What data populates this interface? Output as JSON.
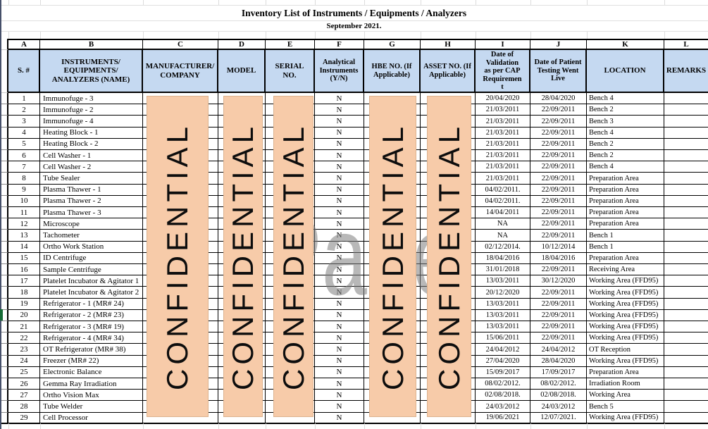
{
  "title": "Inventory List of Instruments / Equipments / Analyzers",
  "subtitle": "September 2021.",
  "columns": [
    "A",
    "B",
    "C",
    "D",
    "E",
    "F",
    "G",
    "H",
    "I",
    "J",
    "K",
    "L"
  ],
  "headers": {
    "serial": "S. #",
    "name": "INSTRUMENTS/ EQUIPMENTS/ ANALYZERS (NAME)",
    "manufacturer": "MANUFACTURER/ COMPANY",
    "model": "MODEL",
    "serial_no": "SERIAL NO.",
    "analytical": "Analytical Instruments (Y/N)",
    "hbe": "HBE NO. (If Applicable)",
    "asset": "ASSET NO. (If Applicable)",
    "validation": "Date of Validation as per CAP Requirement",
    "live": "Date of Patient Testing Went Live",
    "location": "LOCATION",
    "remarks": "REMARKS"
  },
  "watermarks": {
    "confidential": "CONFIDENTIAL",
    "page": "Page"
  },
  "rows": [
    {
      "s": "1",
      "name": "Immunofuge - 3",
      "yn": "N",
      "validation": "20/04/2020",
      "live": "28/04/2020",
      "location": "Bench 4"
    },
    {
      "s": "2",
      "name": "Immunofuge - 2",
      "yn": "N",
      "validation": "21/03/2011",
      "live": "22/09/2011",
      "location": "Bench 2"
    },
    {
      "s": "3",
      "name": "Immunofuge - 4",
      "yn": "N",
      "validation": "21/03/2011",
      "live": "22/09/2011",
      "location": "Bench 3"
    },
    {
      "s": "4",
      "name": "Heating Block - 1",
      "yn": "N",
      "validation": "21/03/2011",
      "live": "22/09/2011",
      "location": "Bench 4"
    },
    {
      "s": "5",
      "name": "Heating Block - 2",
      "yn": "N",
      "validation": "21/03/2011",
      "live": "22/09/2011",
      "location": "Bench 2"
    },
    {
      "s": "6",
      "name": "Cell Washer - 1",
      "yn": "N",
      "validation": "21/03/2011",
      "live": "22/09/2011",
      "location": "Bench 2"
    },
    {
      "s": "7",
      "name": "Cell Washer - 2",
      "yn": "N",
      "validation": "21/03/2011",
      "live": "22/09/2011",
      "location": "Bench 4"
    },
    {
      "s": "8",
      "name": "Tube Sealer",
      "yn": "N",
      "validation": "21/03/2011",
      "live": "22/09/2011",
      "location": "Preparation Area"
    },
    {
      "s": "9",
      "name": "Plasma Thawer - 1",
      "yn": "N",
      "validation": "04/02/2011.",
      "live": "22/09/2011",
      "location": "Preparation Area"
    },
    {
      "s": "10",
      "name": "Plasma Thawer - 2",
      "yn": "N",
      "validation": "04/02/2011.",
      "live": "22/09/2011",
      "location": "Preparation Area"
    },
    {
      "s": "11",
      "name": "Plasma Thawer - 3",
      "yn": "N",
      "validation": "14/04/2011",
      "live": "22/09/2011",
      "location": "Preparation Area"
    },
    {
      "s": "12",
      "name": "Microscope",
      "yn": "N",
      "validation": "NA",
      "live": "22/09/2011",
      "location": "Preparation Area"
    },
    {
      "s": "13",
      "name": "Tachometer",
      "yn": "N",
      "validation": "NA",
      "live": "22/09/2011",
      "location": "Bench 1"
    },
    {
      "s": "14",
      "name": "Ortho Work Station",
      "yn": "N",
      "validation": "02/12/2014.",
      "live": "10/12/2014",
      "location": "Bench 1"
    },
    {
      "s": "15",
      "name": "ID Centrifuge",
      "yn": "N",
      "validation": "18/04/2016",
      "live": "18/04/2016",
      "location": "Preparation Area"
    },
    {
      "s": "16",
      "name": "Sample Centrifuge",
      "yn": "N",
      "validation": "31/01/2018",
      "live": "22/09/2011",
      "location": "Receiving Area"
    },
    {
      "s": "17",
      "name": "Platelet Incubator & Agitator 1",
      "yn": "N",
      "validation": "13/03/2011",
      "live": "30/12/2020",
      "location": "Working Area (FFD95)"
    },
    {
      "s": "18",
      "name": "Platelet Incubator & Agitator 2",
      "yn": "N",
      "validation": "20/12/2020",
      "live": "22/09/2011",
      "location": "Working Area (FFD95)"
    },
    {
      "s": "19",
      "name": "Refrigerator - 1 (MR# 24)",
      "yn": "N",
      "validation": "13/03/2011",
      "live": "22/09/2011",
      "location": "Working Area (FFD95)"
    },
    {
      "s": "20",
      "name": "Refrigerator - 2 (MR# 23)",
      "yn": "N",
      "validation": "13/03/2011",
      "live": "22/09/2011",
      "location": "Working Area (FFD95)"
    },
    {
      "s": "21",
      "name": "Refrigerator - 3 (MR# 19)",
      "yn": "N",
      "validation": "13/03/2011",
      "live": "22/09/2011",
      "location": "Working Area (FFD95)"
    },
    {
      "s": "22",
      "name": "Refrigerator - 4 (MR# 34)",
      "yn": "N",
      "validation": "15/06/2011",
      "live": "22/09/2011",
      "location": "Working Area (FFD95)"
    },
    {
      "s": "23",
      "name": "OT Refrigerator (MR# 38)",
      "yn": "N",
      "validation": "24/04/2012",
      "live": "24/04/2012",
      "location": "OT Reception"
    },
    {
      "s": "24",
      "name": "Freezer (MR# 22)",
      "yn": "N",
      "validation": "27/04/2020",
      "live": "28/04/2020",
      "location": "Working Area (FFD95)"
    },
    {
      "s": "25",
      "name": "Electronic Balance",
      "yn": "N",
      "validation": "15/09/2017",
      "live": "17/09/2017",
      "location": "Preparation Area"
    },
    {
      "s": "26",
      "name": "Gemma Ray Irradiation",
      "yn": "N",
      "validation": "08/02/2012.",
      "live": "08/02/2012.",
      "location": "Irradiation Room"
    },
    {
      "s": "27",
      "name": "Ortho Vision Max",
      "yn": "N",
      "validation": "02/08/2018.",
      "live": "02/08/2018.",
      "location": "Working Area"
    },
    {
      "s": "28",
      "name": "Tube Welder",
      "yn": "N",
      "validation": "24/03/2012",
      "live": "24/03/2012",
      "location": "Bench 5"
    },
    {
      "s": "29",
      "name": "Cell Processor",
      "yn": "N",
      "validation": "19/06/2021",
      "live": "12/07/2021.",
      "location": "Working Area (FFD95)"
    }
  ]
}
